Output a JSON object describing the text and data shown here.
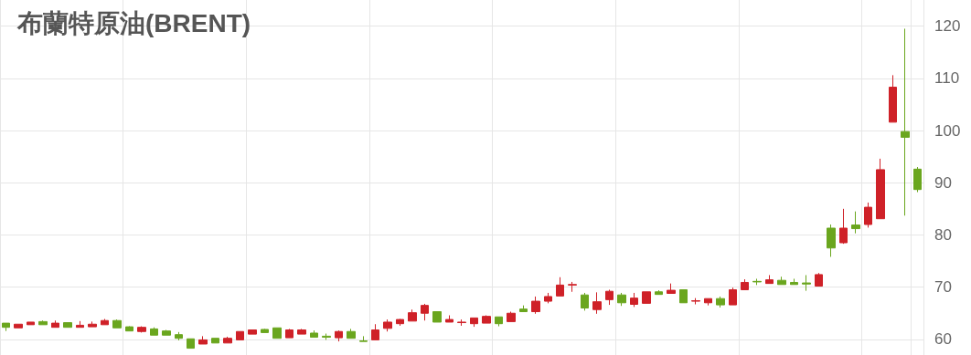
{
  "chart_data": {
    "type": "candlestick",
    "title": "布蘭特原油(BRENT)",
    "categories": [
      null,
      null,
      null,
      null,
      null,
      null,
      null,
      null,
      null,
      null,
      null,
      null,
      null,
      null,
      null,
      null,
      null,
      null,
      null,
      null,
      null,
      null,
      null,
      null,
      null,
      null,
      null,
      null,
      null,
      null,
      null,
      null,
      null,
      null,
      null,
      null,
      null,
      null,
      null,
      null,
      null,
      null,
      null,
      null,
      null,
      null,
      null,
      null,
      null,
      null,
      null,
      null,
      null,
      null,
      null,
      null,
      null,
      null,
      null,
      null,
      null,
      null,
      null,
      null,
      null,
      null,
      null,
      null,
      null,
      null,
      null,
      null,
      null,
      null,
      null
    ],
    "ohlc": [
      [
        63.1,
        63.1,
        61.6,
        62.3
      ],
      [
        62.2,
        62.9,
        62.2,
        62.9
      ],
      [
        62.8,
        63.3,
        62.8,
        63.3
      ],
      [
        63.4,
        63.6,
        62.8,
        62.8
      ],
      [
        62.3,
        63.6,
        62.3,
        63.1
      ],
      [
        63.2,
        63.2,
        62.3,
        62.3
      ],
      [
        62.3,
        63.5,
        62.3,
        62.7
      ],
      [
        62.4,
        63.4,
        62.4,
        62.9
      ],
      [
        62.8,
        63.9,
        62.8,
        63.6
      ],
      [
        63.6,
        63.8,
        62.2,
        62.2
      ],
      [
        62.4,
        62.5,
        61.6,
        61.6
      ],
      [
        61.5,
        62.5,
        61.3,
        62.3
      ],
      [
        62.0,
        62.3,
        60.8,
        60.8
      ],
      [
        61.6,
        61.8,
        60.8,
        60.8
      ],
      [
        60.9,
        61.4,
        59.8,
        60.2
      ],
      [
        60.1,
        60.1,
        58.3,
        58.3
      ],
      [
        59.1,
        60.6,
        59.1,
        59.9
      ],
      [
        60.2,
        60.2,
        59.3,
        59.3
      ],
      [
        59.3,
        60.5,
        59.3,
        60.2
      ],
      [
        59.9,
        61.5,
        59.9,
        61.5
      ],
      [
        61.0,
        61.8,
        61.0,
        61.8
      ],
      [
        61.9,
        62.0,
        61.3,
        61.3
      ],
      [
        62.2,
        62.2,
        60.2,
        60.2
      ],
      [
        60.3,
        62.0,
        60.3,
        61.8
      ],
      [
        61.0,
        62.0,
        61.0,
        61.8
      ],
      [
        61.2,
        61.7,
        60.4,
        60.4
      ],
      [
        60.6,
        61.1,
        59.9,
        60.4
      ],
      [
        60.3,
        61.7,
        59.6,
        61.5
      ],
      [
        61.5,
        62.0,
        60.2,
        60.2
      ],
      [
        59.7,
        60.6,
        59.6,
        59.6
      ],
      [
        59.9,
        62.9,
        59.9,
        61.8
      ],
      [
        62.1,
        63.8,
        61.5,
        63.3
      ],
      [
        63.0,
        63.9,
        62.6,
        63.8
      ],
      [
        63.5,
        65.7,
        63.5,
        65.1
      ],
      [
        65.0,
        66.8,
        63.6,
        66.5
      ],
      [
        65.3,
        65.3,
        63.3,
        63.3
      ],
      [
        63.3,
        64.6,
        63.3,
        63.8
      ],
      [
        63.2,
        63.8,
        62.6,
        63.3
      ],
      [
        63.0,
        64.1,
        62.4,
        64.1
      ],
      [
        63.1,
        64.6,
        63.1,
        64.4
      ],
      [
        64.3,
        64.3,
        62.5,
        63.0
      ],
      [
        63.4,
        65.3,
        63.4,
        65.0
      ],
      [
        65.8,
        66.5,
        65.3,
        65.3
      ],
      [
        65.3,
        68.2,
        64.9,
        67.3
      ],
      [
        67.3,
        68.9,
        66.9,
        68.2
      ],
      [
        68.3,
        71.9,
        68.3,
        70.4
      ],
      [
        70.4,
        71.0,
        69.1,
        70.5
      ],
      [
        68.5,
        68.9,
        65.5,
        66.0
      ],
      [
        65.7,
        69.0,
        64.9,
        67.2
      ],
      [
        67.6,
        69.5,
        66.6,
        69.2
      ],
      [
        68.5,
        68.9,
        66.4,
        67.0
      ],
      [
        66.7,
        68.9,
        66.2,
        67.9
      ],
      [
        66.9,
        69.1,
        66.9,
        69.1
      ],
      [
        69.1,
        69.4,
        68.6,
        68.6
      ],
      [
        68.8,
        70.7,
        68.8,
        69.4
      ],
      [
        69.5,
        69.5,
        67.0,
        67.0
      ],
      [
        67.3,
        67.9,
        66.7,
        67.4
      ],
      [
        67.0,
        67.8,
        66.5,
        67.8
      ],
      [
        67.8,
        68.2,
        66.1,
        66.6
      ],
      [
        66.6,
        69.9,
        66.6,
        69.5
      ],
      [
        69.5,
        71.5,
        69.5,
        70.9
      ],
      [
        71.1,
        71.6,
        70.4,
        71.0
      ],
      [
        70.7,
        72.3,
        70.7,
        71.4
      ],
      [
        71.3,
        72.0,
        70.5,
        70.5
      ],
      [
        70.9,
        71.6,
        70.5,
        70.5
      ],
      [
        70.8,
        72.3,
        69.3,
        70.6
      ],
      [
        70.2,
        72.7,
        70.2,
        72.4
      ],
      [
        81.3,
        82.0,
        75.8,
        77.5
      ],
      [
        78.5,
        85.0,
        78.3,
        81.3
      ],
      [
        81.9,
        84.5,
        80.3,
        81.2
      ],
      [
        82.0,
        86.2,
        81.4,
        85.3
      ],
      [
        83.1,
        94.6,
        83.1,
        92.5
      ],
      [
        101.6,
        110.6,
        101.6,
        108.3
      ],
      [
        99.8,
        119.5,
        83.7,
        98.7
      ],
      [
        92.6,
        93.0,
        88.2,
        88.7
      ]
    ],
    "colors": [
      "#6aa61e",
      "#cf2128",
      "#cf2128",
      "#6aa61e",
      "#cf2128",
      "#6aa61e",
      "#cf2128",
      "#cf2128",
      "#cf2128",
      "#6aa61e",
      "#6aa61e",
      "#cf2128",
      "#6aa61e",
      "#6aa61e",
      "#6aa61e",
      "#6aa61e",
      "#cf2128",
      "#6aa61e",
      "#cf2128",
      "#cf2128",
      "#cf2128",
      "#6aa61e",
      "#6aa61e",
      "#cf2128",
      "#cf2128",
      "#6aa61e",
      "#6aa61e",
      "#cf2128",
      "#6aa61e",
      "#6aa61e",
      "#cf2128",
      "#cf2128",
      "#cf2128",
      "#cf2128",
      "#cf2128",
      "#6aa61e",
      "#cf2128",
      "#cf2128",
      "#cf2128",
      "#cf2128",
      "#6aa61e",
      "#cf2128",
      "#6aa61e",
      "#cf2128",
      "#cf2128",
      "#cf2128",
      "#cf2128",
      "#6aa61e",
      "#cf2128",
      "#cf2128",
      "#6aa61e",
      "#cf2128",
      "#cf2128",
      "#6aa61e",
      "#cf2128",
      "#6aa61e",
      "#cf2128",
      "#cf2128",
      "#6aa61e",
      "#cf2128",
      "#cf2128",
      "#6aa61e",
      "#cf2128",
      "#6aa61e",
      "#6aa61e",
      "#6aa61e",
      "#cf2128",
      "#6aa61e",
      "#cf2128",
      "#6aa61e",
      "#cf2128",
      "#cf2128",
      "#cf2128",
      "#6aa61e",
      "#6aa61e"
    ],
    "ylim": [
      57,
      125
    ],
    "yticks": [
      60,
      70,
      80,
      90,
      100,
      110,
      120
    ],
    "grid": true,
    "tick_labels": "y"
  }
}
